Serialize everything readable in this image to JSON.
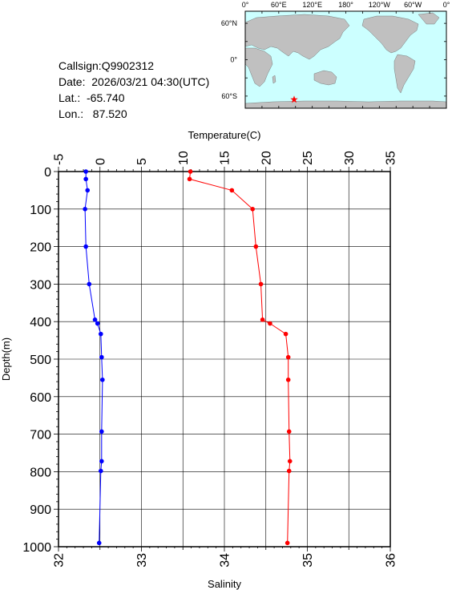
{
  "info": {
    "callsign": "Callsign:Q9902312",
    "date": "Date:  2026/03/21 04:30(UTC)",
    "lat": "Lat.:  -65.740",
    "lon": "Lon.:   87.520"
  },
  "map": {
    "lon_labels": [
      "0°",
      "60°E",
      "120°E",
      "180°",
      "120°W",
      "60°W",
      "0°"
    ],
    "lat_labels": [
      "60°N",
      "0°",
      "60°S"
    ],
    "marker_lon": 87.52,
    "marker_lat": -65.74,
    "colors": {
      "ocean": "#ccffff",
      "land": "#c0c0c0",
      "marker": "#ff0000"
    }
  },
  "chart_data": {
    "type": "line",
    "ylabel": "Depth(m)",
    "ylim": [
      1000,
      0
    ],
    "yticks": [
      "0",
      "100",
      "200",
      "300",
      "400",
      "500",
      "600",
      "700",
      "800",
      "900",
      "1000"
    ],
    "top_axis": {
      "label": "Temperature(C)",
      "lim": [
        -5,
        35
      ],
      "ticks": [
        "-5",
        "0",
        "5",
        "10",
        "15",
        "20",
        "25",
        "30",
        "35"
      ]
    },
    "bottom_axis": {
      "label": "Salinity",
      "lim": [
        32,
        36
      ],
      "ticks": [
        "32",
        "33",
        "34",
        "35",
        "36"
      ]
    },
    "grid": true,
    "series": [
      {
        "axis": "top",
        "color": "#ff0000",
        "points": [
          {
            "x": 10.9,
            "y": 0
          },
          {
            "x": 10.8,
            "y": 20
          },
          {
            "x": 15.9,
            "y": 50
          },
          {
            "x": 18.4,
            "y": 100
          },
          {
            "x": 18.8,
            "y": 200
          },
          {
            "x": 19.4,
            "y": 300
          },
          {
            "x": 19.6,
            "y": 395
          },
          {
            "x": 20.5,
            "y": 405
          },
          {
            "x": 22.4,
            "y": 433
          },
          {
            "x": 22.7,
            "y": 495
          },
          {
            "x": 22.7,
            "y": 555
          },
          {
            "x": 22.8,
            "y": 693
          },
          {
            "x": 22.9,
            "y": 772
          },
          {
            "x": 22.8,
            "y": 798
          },
          {
            "x": 22.6,
            "y": 990
          }
        ]
      },
      {
        "axis": "bottom",
        "color": "#0000ff",
        "points": [
          {
            "x": 32.33,
            "y": 0
          },
          {
            "x": 32.33,
            "y": 20
          },
          {
            "x": 32.35,
            "y": 50
          },
          {
            "x": 32.32,
            "y": 100
          },
          {
            "x": 32.33,
            "y": 200
          },
          {
            "x": 32.37,
            "y": 300
          },
          {
            "x": 32.44,
            "y": 395
          },
          {
            "x": 32.47,
            "y": 405
          },
          {
            "x": 32.51,
            "y": 433
          },
          {
            "x": 32.52,
            "y": 495
          },
          {
            "x": 32.53,
            "y": 555
          },
          {
            "x": 32.52,
            "y": 693
          },
          {
            "x": 32.52,
            "y": 772
          },
          {
            "x": 32.51,
            "y": 798
          },
          {
            "x": 32.49,
            "y": 990
          }
        ]
      }
    ]
  }
}
